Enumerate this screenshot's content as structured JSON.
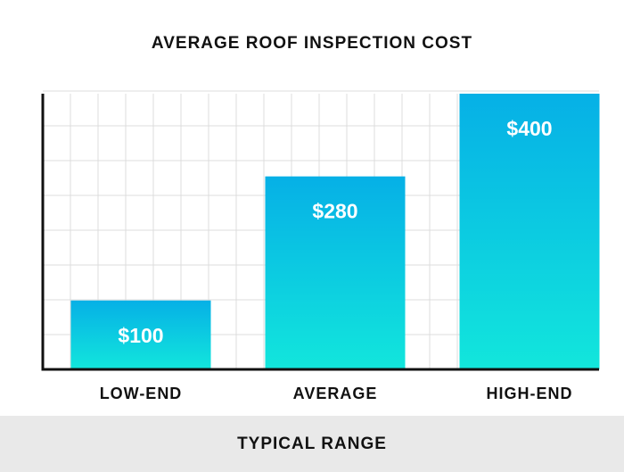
{
  "chart_data": {
    "type": "bar",
    "title": "AVERAGE ROOF INSPECTION COST",
    "categories": [
      "LOW-END",
      "AVERAGE",
      "HIGH-END"
    ],
    "values": [
      100,
      280,
      400
    ],
    "value_labels": [
      "$100",
      "$280",
      "$400"
    ],
    "xlabel": "TYPICAL RANGE",
    "ylabel": "",
    "ylim": [
      0,
      400
    ],
    "grid": true,
    "colors": {
      "bar_top": "#06b0e6",
      "bar_bottom": "#12e6dc",
      "grid": "#dcdcdc",
      "axis": "#111111"
    }
  }
}
